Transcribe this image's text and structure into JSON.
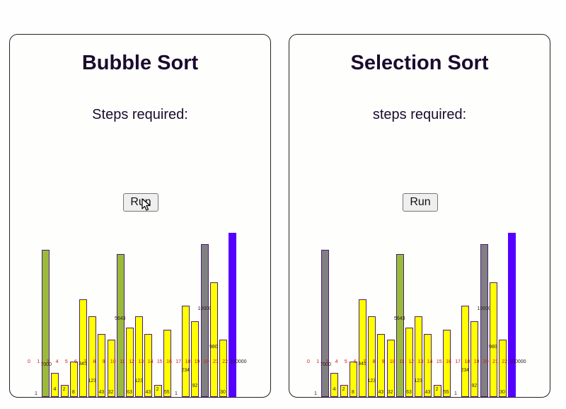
{
  "panels": [
    {
      "title": "Bubble Sort",
      "steps_label": "Steps required:",
      "run_label": "Run",
      "cursor_over_run": true,
      "colors": {
        "default": "#ffff00",
        "endpoint": "#5500ff",
        "compared": "#9aba3a",
        "active": "#808080"
      },
      "bars": [
        {
          "index": "0",
          "value": "1",
          "state": "endpoint"
        },
        {
          "index": "1",
          "value": "7000",
          "state": "compared"
        },
        {
          "index": "3",
          "value": "4",
          "state": "default"
        },
        {
          "index": "4",
          "value": "2",
          "state": "default"
        },
        {
          "index": "5",
          "value": "8",
          "state": "default"
        },
        {
          "index": "6",
          "value": "345",
          "state": "default"
        },
        {
          "index": "7",
          "value": "123",
          "state": "default"
        },
        {
          "index": "8",
          "value": "43",
          "state": "default"
        },
        {
          "index": "9",
          "value": "32",
          "state": "default"
        },
        {
          "index": "10",
          "value": "5643",
          "state": "compared"
        },
        {
          "index": "11",
          "value": "63",
          "state": "default"
        },
        {
          "index": "12",
          "value": "123",
          "state": "default"
        },
        {
          "index": "13",
          "value": "43",
          "state": "default"
        },
        {
          "index": "14",
          "value": "2",
          "state": "default"
        },
        {
          "index": "15",
          "value": "55",
          "state": "default"
        },
        {
          "index": "16",
          "value": "1",
          "state": "default"
        },
        {
          "index": "17",
          "value": "234",
          "state": "default"
        },
        {
          "index": "18",
          "value": "92",
          "state": "default"
        },
        {
          "index": "19",
          "value": "10000",
          "state": "active"
        },
        {
          "index": "20",
          "value": "980",
          "state": "default"
        },
        {
          "index": "21",
          "value": "30",
          "state": "default"
        },
        {
          "index": "22",
          "value": "100000",
          "state": "endpoint"
        }
      ]
    },
    {
      "title": "Selection Sort",
      "steps_label": "steps required:",
      "run_label": "Run",
      "cursor_over_run": false,
      "colors": {
        "default": "#ffff00",
        "endpoint": "#5500ff",
        "compared": "#9aba3a",
        "active": "#808080"
      },
      "bars": [
        {
          "index": "0",
          "value": "1",
          "state": "endpoint"
        },
        {
          "index": "1",
          "value": "7000",
          "state": "active"
        },
        {
          "index": "3",
          "value": "4",
          "state": "default"
        },
        {
          "index": "4",
          "value": "2",
          "state": "default"
        },
        {
          "index": "5",
          "value": "8",
          "state": "default"
        },
        {
          "index": "6",
          "value": "345",
          "state": "default"
        },
        {
          "index": "7",
          "value": "123",
          "state": "default"
        },
        {
          "index": "8",
          "value": "43",
          "state": "default"
        },
        {
          "index": "9",
          "value": "32",
          "state": "default"
        },
        {
          "index": "10",
          "value": "5643",
          "state": "compared"
        },
        {
          "index": "11",
          "value": "63",
          "state": "default"
        },
        {
          "index": "12",
          "value": "123",
          "state": "default"
        },
        {
          "index": "13",
          "value": "43",
          "state": "default"
        },
        {
          "index": "14",
          "value": "2",
          "state": "default"
        },
        {
          "index": "15",
          "value": "55",
          "state": "default"
        },
        {
          "index": "16",
          "value": "1",
          "state": "default"
        },
        {
          "index": "17",
          "value": "234",
          "state": "default"
        },
        {
          "index": "18",
          "value": "92",
          "state": "default"
        },
        {
          "index": "19",
          "value": "10000",
          "state": "active"
        },
        {
          "index": "20",
          "value": "980",
          "state": "default"
        },
        {
          "index": "21",
          "value": "30",
          "state": "default"
        },
        {
          "index": "22",
          "value": "100000",
          "state": "endpoint"
        }
      ]
    }
  ]
}
